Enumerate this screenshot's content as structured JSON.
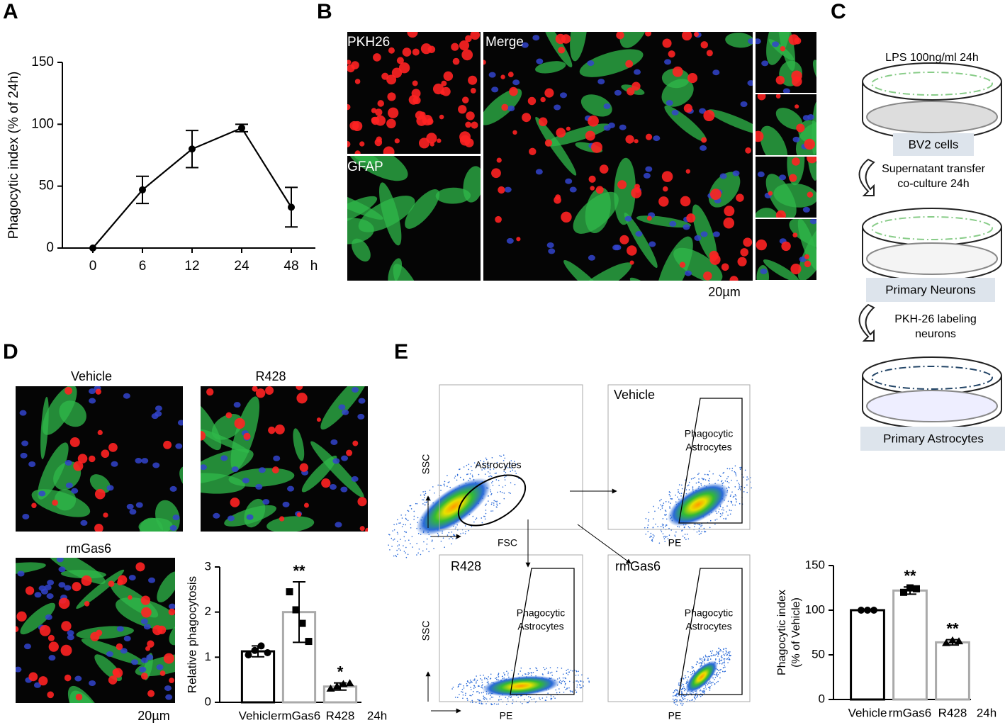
{
  "panel_labels": {
    "a": "A",
    "b": "B",
    "c": "C",
    "d": "D",
    "e": "E"
  },
  "micrographs_b": {
    "pkh26": "PKH26",
    "gfap": "GFAP",
    "merge": "Merge",
    "scale": "20µm"
  },
  "diagram_c": {
    "step1": "LPS 100ng/ml 24h",
    "dish1": "BV2 cells",
    "step2": [
      "Supernatant transfer",
      "co-culture 24h"
    ],
    "dish2": "Primary Neurons",
    "step3": [
      "PKH-26 labeling",
      "neurons"
    ],
    "dish3": "Primary Astrocytes"
  },
  "micrographs_d": {
    "vehicle": "Vehicle",
    "r428": "R428",
    "rmgas6": "rmGas6",
    "scale": "20µm"
  },
  "flow_e": {
    "ssc": "SSC",
    "fsc": "FSC",
    "pe": "PE",
    "vehicle": "Vehicle",
    "r428": "R428",
    "rmgas6": "rmGas6",
    "gate1": "Astrocytes",
    "gate2": [
      "Phagocytic",
      "Astrocytes"
    ]
  },
  "chart_data": [
    {
      "type": "line",
      "ylabel": "Phagocytic index (% of 24h)",
      "categories": [
        "0",
        "6",
        "12",
        "24",
        "48"
      ],
      "x_unit": "h",
      "values": [
        0,
        47,
        80,
        97,
        33
      ],
      "errors": [
        0,
        11,
        15,
        3,
        16
      ],
      "color": "#000000",
      "ylim": [
        0,
        150
      ],
      "yticks": [
        0,
        50,
        100,
        150
      ]
    },
    {
      "type": "bar",
      "ylabel": "Relative phagocytosis",
      "categories": [
        "Vehicle",
        "rmGas6",
        "R428"
      ],
      "x_unit": "24h",
      "values": [
        1.13,
        2.0,
        0.35
      ],
      "errors": [
        0.12,
        0.67,
        0.08
      ],
      "points": [
        [
          1.05,
          1.15,
          1.25,
          1.1
        ],
        [
          2.45,
          2.05,
          1.75,
          1.35
        ],
        [
          0.3,
          0.35,
          0.4,
          0.42
        ]
      ],
      "significance": [
        null,
        "**",
        "*"
      ],
      "colors": [
        "#000000",
        "#aaaaaa",
        "#aaaaaa"
      ],
      "ylim": [
        0,
        3
      ],
      "yticks": [
        0,
        1,
        2,
        3
      ]
    },
    {
      "type": "bar",
      "ylabel": [
        "Phagocytic index",
        "(% of Vehicle)"
      ],
      "categories": [
        "Vehicle",
        "rmGas6",
        "R428"
      ],
      "x_unit": "24h",
      "values": [
        100,
        122,
        64
      ],
      "errors": [
        1,
        4,
        3
      ],
      "points": [
        [
          100,
          100,
          100
        ],
        [
          120,
          125,
          124
        ],
        [
          63,
          66,
          65
        ]
      ],
      "significance": [
        null,
        "**",
        "**"
      ],
      "colors": [
        "#000000",
        "#aaaaaa",
        "#aaaaaa"
      ],
      "ylim": [
        0,
        150
      ],
      "yticks": [
        0,
        50,
        100,
        150
      ]
    }
  ]
}
